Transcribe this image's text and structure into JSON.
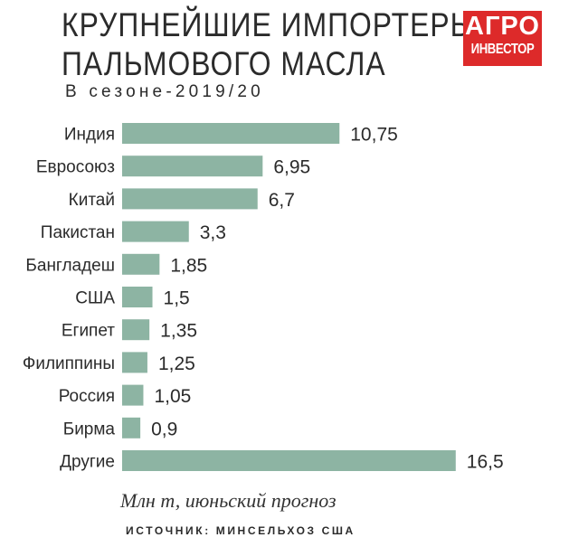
{
  "title_line1": "КРУПНЕЙШИЕ ИМПОРТЕРЫ",
  "title_line2": "ПАЛЬМОВОГО МАСЛА",
  "subtitle": "В сезоне-2019/20",
  "logo": {
    "line1": "АГРО",
    "line2": "ИНВЕСТОР",
    "color": "#dd2a2a"
  },
  "note": "Млн т, июньский прогноз",
  "source": "ИСТОЧНИК: МИНСЕЛЬХОЗ США",
  "bar_color": "#8db4a3",
  "chart_data": {
    "type": "bar",
    "orientation": "horizontal",
    "categories": [
      "Индия",
      "Евросоюз",
      "Китай",
      "Пакистан",
      "Бангладеш",
      "США",
      "Египет",
      "Филиппины",
      "Россия",
      "Бирма",
      "Другие"
    ],
    "values": [
      10.75,
      6.95,
      6.7,
      3.3,
      1.85,
      1.5,
      1.35,
      1.25,
      1.05,
      0.9,
      16.5
    ],
    "value_labels": [
      "10,75",
      "6,95",
      "6,7",
      "3,3",
      "1,85",
      "1,5",
      "1,35",
      "1,25",
      "1,05",
      "0,9",
      "16,5"
    ],
    "title": "КРУПНЕЙШИЕ ИМПОРТЕРЫ ПАЛЬМОВОГО МАСЛА",
    "subtitle": "В сезоне-2019/20",
    "unit": "Млн т, июньский прогноз",
    "grid": false,
    "legend": "none"
  }
}
